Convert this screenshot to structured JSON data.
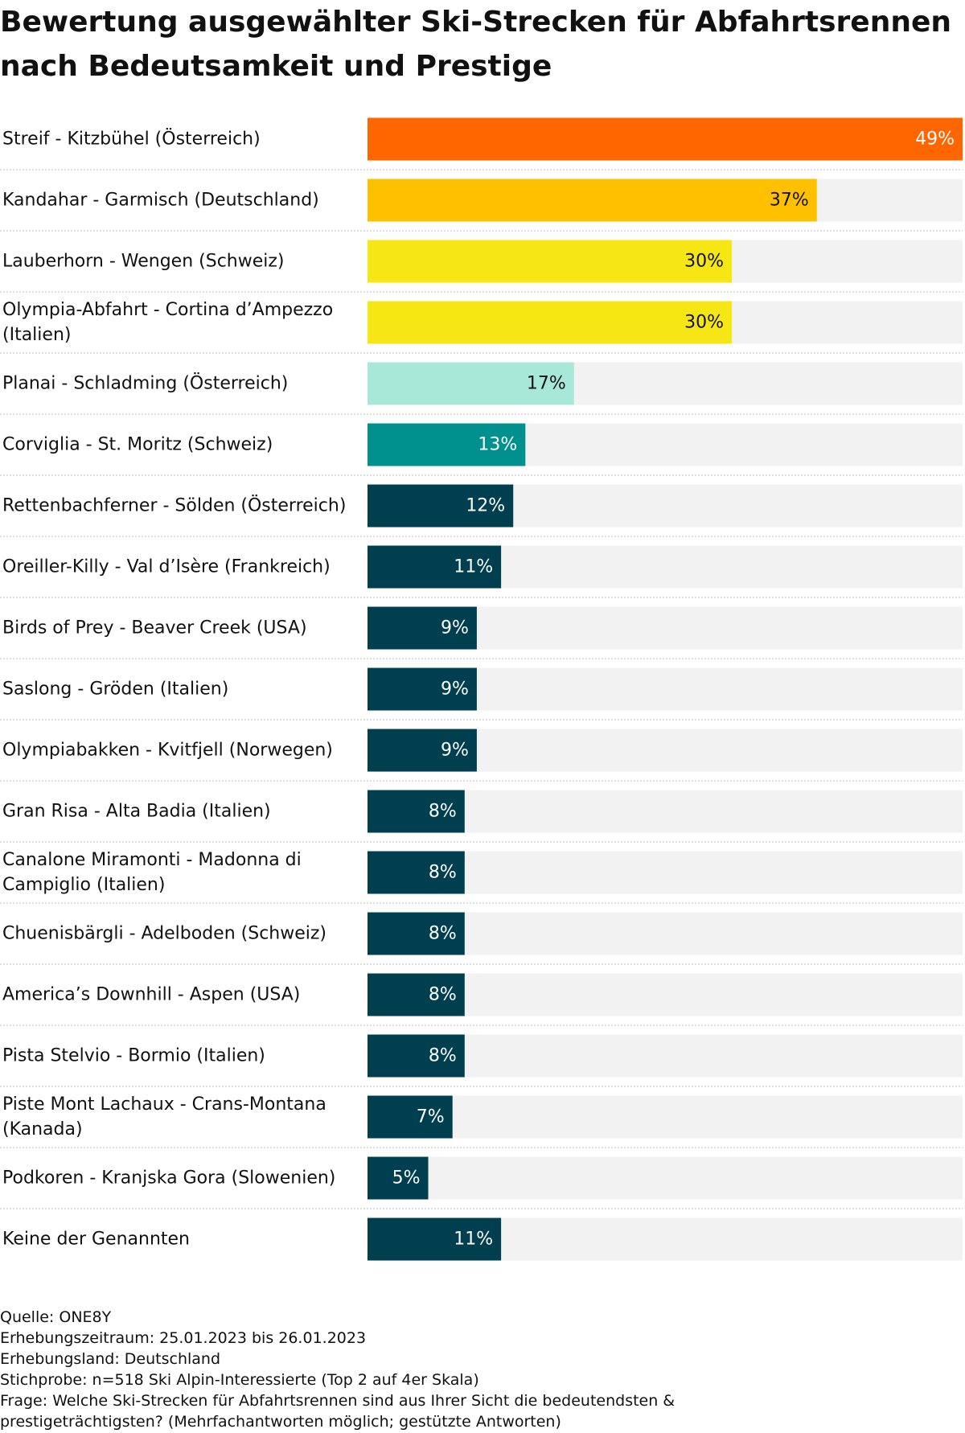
{
  "chart_data": {
    "type": "bar",
    "orientation": "horizontal",
    "title": "Bewertung ausgewählter Ski-Strecken für Abfahrtsrennen nach Bedeutsamkeit und Prestige",
    "categories": [
      [
        "Streif - Kitzbühel (Österreich)"
      ],
      [
        "Kandahar - Garmisch (Deutschland)"
      ],
      [
        "Lauberhorn - Wengen (Schweiz)"
      ],
      [
        "Olympia-Abfahrt - Cortina d’Ampezzo",
        "(Italien)"
      ],
      [
        "Planai - Schladming (Österreich)"
      ],
      [
        "Corviglia - St. Moritz (Schweiz)"
      ],
      [
        "Rettenbachferner - Sölden (Österreich)"
      ],
      [
        "Oreiller-Killy - Val d’Isère (Frankreich)"
      ],
      [
        "Birds of Prey - Beaver Creek (USA)"
      ],
      [
        "Saslong - Gröden (Italien)"
      ],
      [
        "Olympiabakken - Kvitfjell (Norwegen)"
      ],
      [
        "Gran Risa - Alta Badia (Italien)"
      ],
      [
        "Canalone Miramonti - Madonna di",
        "Campiglio (Italien)"
      ],
      [
        "Chuenisbärgli - Adelboden (Schweiz)"
      ],
      [
        "America’s Downhill - Aspen (USA)"
      ],
      [
        "Pista Stelvio - Bormio (Italien)"
      ],
      [
        "Piste Mont Lachaux - Crans-Montana",
        "(Kanada)"
      ],
      [
        "Podkoren - Kranjska Gora (Slowenien)"
      ],
      [
        "Keine der Genannten"
      ]
    ],
    "values": [
      49,
      37,
      30,
      30,
      17,
      13,
      12,
      11,
      9,
      9,
      9,
      8,
      8,
      8,
      8,
      8,
      7,
      5,
      11
    ],
    "value_labels": [
      "49%",
      "37%",
      "30%",
      "30%",
      "17%",
      "13%",
      "12%",
      "11%",
      "9%",
      "9%",
      "9%",
      "8%",
      "8%",
      "8%",
      "8%",
      "8%",
      "7%",
      "5%",
      "11%"
    ],
    "bar_colors": [
      "#ff6600",
      "#ffc000",
      "#f5e614",
      "#f5e614",
      "#a8e8d8",
      "#00918e",
      "#003f4f",
      "#003f4f",
      "#003f4f",
      "#003f4f",
      "#003f4f",
      "#003f4f",
      "#003f4f",
      "#003f4f",
      "#003f4f",
      "#003f4f",
      "#003f4f",
      "#003f4f",
      "#003f4f"
    ],
    "value_label_colors": [
      "#ffffff",
      "#111111",
      "#111111",
      "#111111",
      "#111111",
      "#ffffff",
      "#ffffff",
      "#ffffff",
      "#ffffff",
      "#ffffff",
      "#ffffff",
      "#ffffff",
      "#ffffff",
      "#ffffff",
      "#ffffff",
      "#ffffff",
      "#ffffff",
      "#ffffff",
      "#ffffff"
    ],
    "xlim": [
      0,
      49
    ],
    "track_color": "#f2f2f2",
    "grid": false,
    "legend": "none"
  },
  "footer": {
    "source": "Quelle: ONE8Y",
    "period": "Erhebungszeitraum: 25.01.2023 bis 26.01.2023",
    "country": "Erhebungsland: Deutschland",
    "sample": "Stichprobe: n=518 Ski Alpin-Interessierte (Top 2 auf 4er Skala)",
    "question_line1": "Frage: Welche Ski-Strecken für Abfahrtsrennen sind aus Ihrer Sicht die bedeutendsten &",
    "question_line2": "prestigeträchtigsten? (Mehrfachantworten möglich; gestützte Antworten)"
  }
}
